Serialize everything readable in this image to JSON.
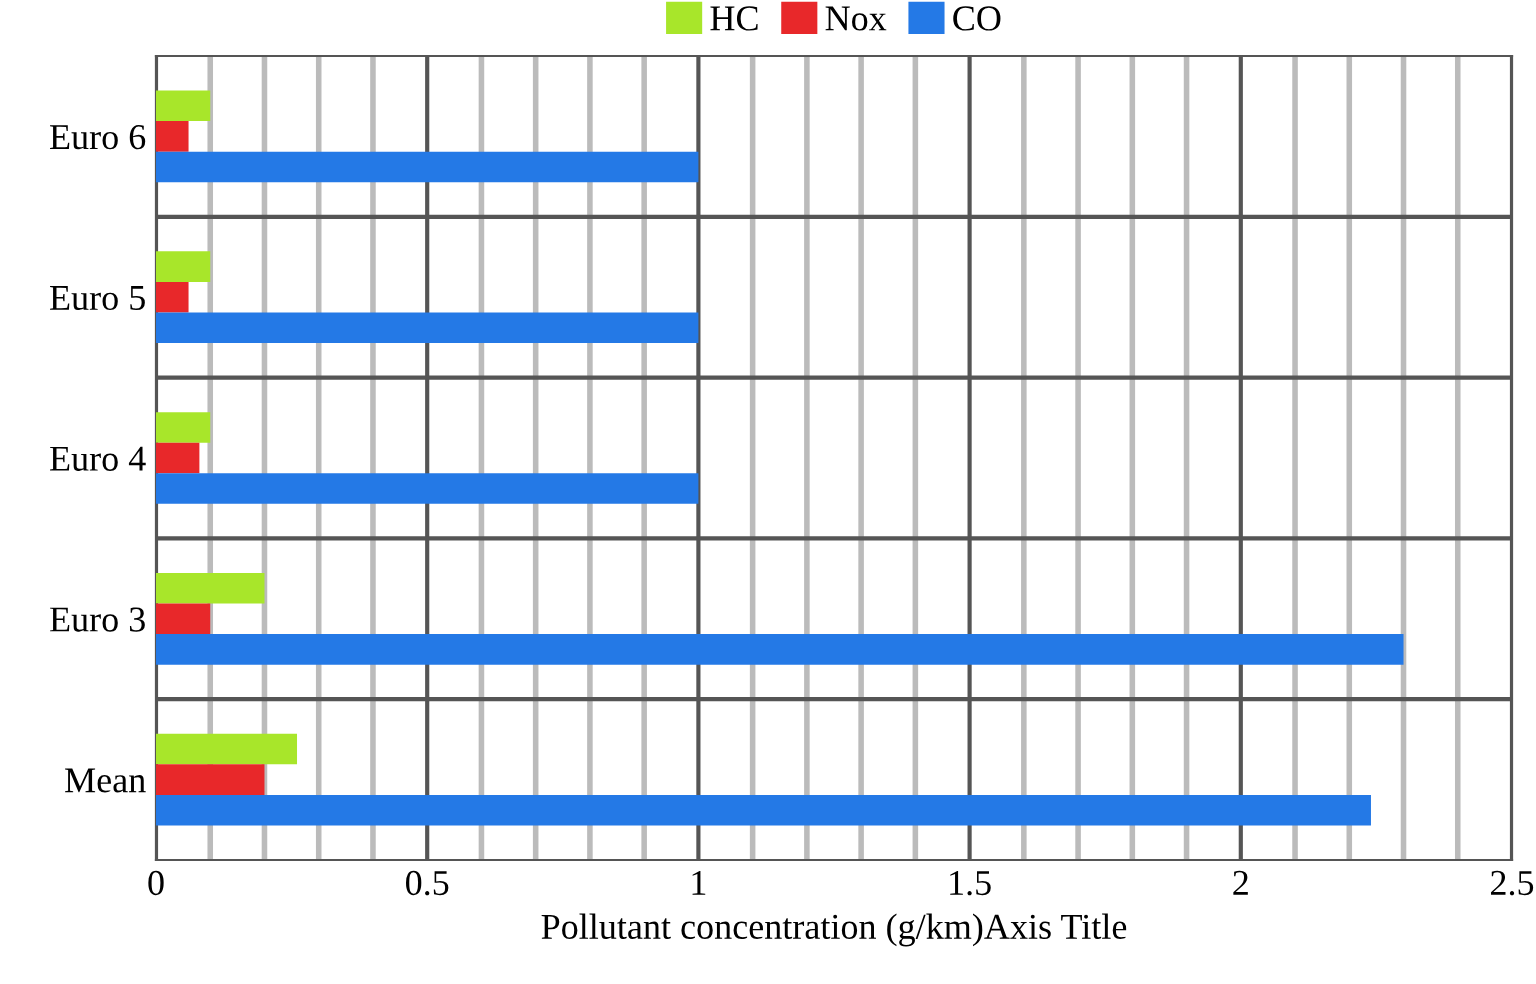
{
  "chart_data": {
    "type": "bar",
    "orientation": "horizontal",
    "xlabel": "Pollutant concentration (g/km)Axis Title",
    "categories": [
      "Euro 6",
      "Euro 5",
      "Euro 4",
      "Euro 3",
      "Mean"
    ],
    "series": [
      {
        "name": "HC",
        "color": "#a8e62a",
        "values": [
          0.1,
          0.1,
          0.1,
          0.2,
          0.26
        ]
      },
      {
        "name": "Nox",
        "color": "#e8282a",
        "values": [
          0.06,
          0.06,
          0.08,
          0.1,
          0.2
        ]
      },
      {
        "name": "CO",
        "color": "#2479e6",
        "values": [
          1.0,
          1.0,
          1.0,
          2.3,
          2.24
        ]
      }
    ],
    "xlim": [
      0,
      2.5
    ],
    "xticks": [
      0,
      {
        "value": 0.1,
        "label": null
      },
      {
        "value": 0.2,
        "label": null
      },
      {
        "value": 0.3,
        "label": null
      },
      {
        "value": 0.4,
        "label": null
      },
      0.5,
      {
        "value": 0.6,
        "label": null
      },
      {
        "value": 0.7,
        "label": null
      },
      {
        "value": 0.8,
        "label": null
      },
      {
        "value": 0.9,
        "label": null
      },
      1,
      {
        "value": 1.1,
        "label": null
      },
      {
        "value": 1.2,
        "label": null
      },
      {
        "value": 1.3,
        "label": null
      },
      {
        "value": 1.4,
        "label": null
      },
      1.5,
      {
        "value": 1.6,
        "label": null
      },
      {
        "value": 1.7,
        "label": null
      },
      {
        "value": 1.8,
        "label": null
      },
      {
        "value": 1.9,
        "label": null
      },
      2,
      {
        "value": 2.1,
        "label": null
      },
      {
        "value": 2.2,
        "label": null
      },
      {
        "value": 2.3,
        "label": null
      },
      {
        "value": 2.4,
        "label": null
      },
      2.5
    ],
    "grid": true,
    "legend": "top"
  }
}
